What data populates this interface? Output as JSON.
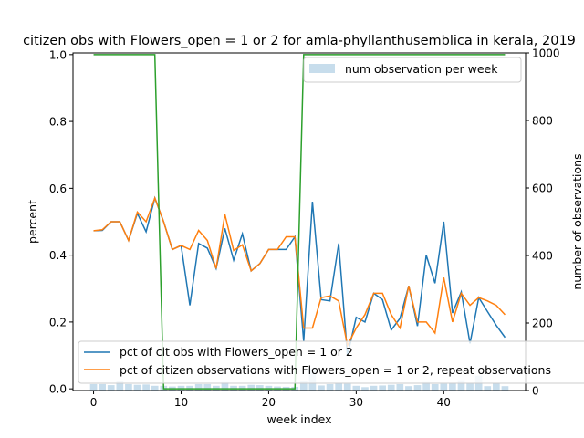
{
  "chart_data": {
    "type": "line",
    "title": "citizen obs with Flowers_open = 1 or 2 for amla-phyllanthusemblica in kerala, 2019",
    "xlabel": "week index",
    "ylabel": "percent",
    "y2label": "number of observations",
    "xlim": [
      -2.35,
      49.35
    ],
    "ylim": [
      -0.005,
      1.005
    ],
    "y2lim": [
      0,
      1000
    ],
    "xticks": [
      0,
      10,
      20,
      30,
      40
    ],
    "yticks": [
      0.0,
      0.2,
      0.4,
      0.6,
      0.8,
      1.0
    ],
    "y2ticks": [
      0,
      200,
      400,
      600,
      800,
      1000
    ],
    "x": [
      0,
      1,
      2,
      3,
      4,
      5,
      6,
      7,
      8,
      9,
      10,
      11,
      12,
      13,
      14,
      15,
      16,
      17,
      18,
      19,
      20,
      21,
      22,
      23,
      24,
      25,
      26,
      27,
      28,
      29,
      30,
      31,
      32,
      33,
      34,
      35,
      36,
      37,
      38,
      39,
      40,
      41,
      42,
      43,
      44,
      45,
      46,
      47
    ],
    "series": [
      {
        "name": "pct of cit obs with Flowers_open = 1 or 2",
        "color": "#1f77b4",
        "axis": "left",
        "values": [
          0.473,
          0.474,
          0.5,
          0.5,
          0.444,
          0.525,
          0.47,
          0.571,
          0.5,
          0.417,
          0.429,
          0.25,
          0.435,
          0.421,
          0.36,
          0.48,
          0.385,
          0.464,
          0.353,
          0.375,
          0.417,
          0.417,
          0.417,
          0.455,
          0.143,
          0.56,
          0.267,
          0.263,
          0.435,
          0.1,
          0.214,
          0.2,
          0.286,
          0.267,
          0.176,
          0.211,
          0.308,
          0.188,
          0.4,
          0.316,
          0.5,
          0.227,
          0.29,
          0.136,
          0.273,
          0.231,
          0.19,
          0.154
        ]
      },
      {
        "name": "pct of citizen observations with Flowers_open = 1 or 2, repeat observations",
        "color": "#ff7f0e",
        "axis": "left",
        "values": [
          0.473,
          0.476,
          0.5,
          0.5,
          0.444,
          0.529,
          0.5,
          0.571,
          0.5,
          0.417,
          0.429,
          0.417,
          0.474,
          0.444,
          0.36,
          0.522,
          0.414,
          0.431,
          0.353,
          0.375,
          0.417,
          0.417,
          0.455,
          0.455,
          0.182,
          0.182,
          0.273,
          0.278,
          0.263,
          0.13,
          0.182,
          0.222,
          0.286,
          0.286,
          0.222,
          0.182,
          0.308,
          0.2,
          0.2,
          0.167,
          0.333,
          0.2,
          0.286,
          0.25,
          0.273,
          0.263,
          0.25,
          0.222
        ]
      },
      {
        "name": "num observation per week",
        "color": "#1f77b4",
        "type": "bar",
        "axis": "right",
        "values": [
          19,
          19,
          16,
          28,
          19,
          17,
          18,
          14,
          14,
          12,
          14,
          14,
          19,
          19,
          14,
          25,
          14,
          14,
          17,
          16,
          14,
          12,
          11,
          11,
          30,
          65,
          15,
          19,
          23,
          20,
          14,
          10,
          14,
          15,
          17,
          19,
          13,
          16,
          25,
          19,
          20,
          22,
          31,
          22,
          44,
          13,
          21,
          13
        ]
      },
      {
        "name": "",
        "color": "#2ca02c",
        "axis": "left",
        "values": [
          1,
          1,
          1,
          1,
          1,
          1,
          1,
          1,
          0,
          0,
          0,
          0,
          0,
          0,
          0,
          0,
          0,
          0,
          0,
          0,
          0,
          0,
          0,
          0,
          1,
          1,
          1,
          1,
          1,
          1,
          1,
          1,
          1,
          1,
          1,
          1,
          1,
          1,
          1,
          1,
          1,
          1,
          1,
          1,
          1,
          1,
          1,
          1
        ]
      }
    ],
    "legend": {
      "top_right": [
        "num observation per week"
      ],
      "bottom_left": [
        "pct of cit obs with Flowers_open = 1 or 2",
        "pct of citizen observations with Flowers_open = 1 or 2, repeat observations"
      ]
    }
  }
}
